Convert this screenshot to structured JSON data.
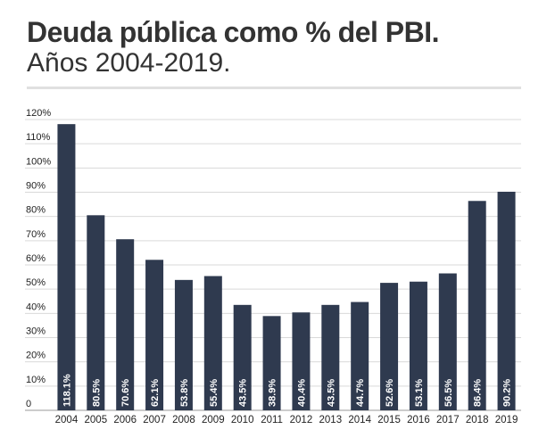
{
  "header": {
    "title": "Deuda pública como % del PBI.",
    "subtitle": "Años 2004-2019."
  },
  "colors": {
    "bar": "#2f3a4f",
    "grid": "#d9d9d9",
    "text": "#333333"
  },
  "chart_data": {
    "type": "bar",
    "title": "Deuda pública como % del PBI.",
    "subtitle": "Años 2004-2019.",
    "xlabel": "",
    "ylabel": "",
    "categories": [
      "2004",
      "2005",
      "2006",
      "2007",
      "2008",
      "2009",
      "2010",
      "2011",
      "2012",
      "2013",
      "2014",
      "2015",
      "2016",
      "2017",
      "2018",
      "2019"
    ],
    "values": [
      118.1,
      80.5,
      70.6,
      62.1,
      53.8,
      55.4,
      43.5,
      38.9,
      40.4,
      43.5,
      44.7,
      52.6,
      53.1,
      56.5,
      86.4,
      90.2
    ],
    "data_labels": [
      "118.1%",
      "80.5%",
      "70.6%",
      "62.1%",
      "53.8%",
      "55.4%",
      "43.5%",
      "38.9%",
      "40.4%",
      "43.5%",
      "44.7%",
      "52.6%",
      "53.1%",
      "56.5%",
      "86.4%",
      "90.2%"
    ],
    "ylim": [
      0,
      120
    ],
    "yticks": [
      0,
      10,
      20,
      30,
      40,
      50,
      60,
      70,
      80,
      90,
      100,
      110,
      120
    ],
    "ytick_labels": [
      "0",
      "10%",
      "20%",
      "30%",
      "40%",
      "50%",
      "60%",
      "70%",
      "80%",
      "90%",
      "100%",
      "110%",
      "120%"
    ],
    "grid": true,
    "legend": "none"
  }
}
